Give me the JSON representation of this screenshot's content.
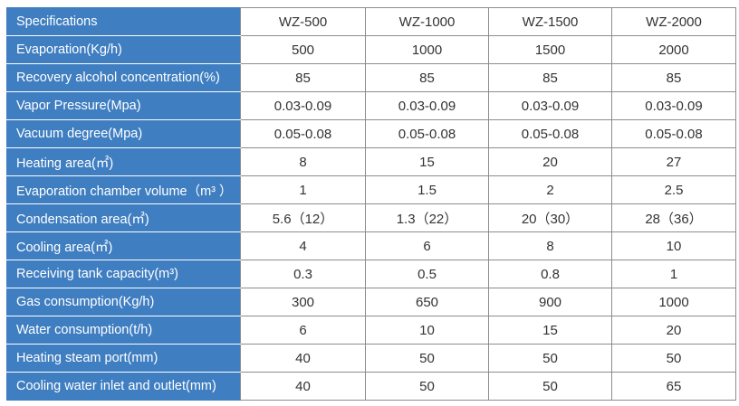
{
  "table": {
    "header_label": "Specifications",
    "models": [
      "WZ-500",
      "WZ-1000",
      "WZ-1500",
      "WZ-2000"
    ],
    "rows": [
      {
        "label": "Evaporation(Kg/h)",
        "values": [
          "500",
          "1000",
          "1500",
          "2000"
        ]
      },
      {
        "label": "Recovery alcohol concentration(%)",
        "values": [
          "85",
          "85",
          "85",
          "85"
        ]
      },
      {
        "label": "Vapor Pressure(Mpa)",
        "values": [
          "0.03-0.09",
          "0.03-0.09",
          "0.03-0.09",
          "0.03-0.09"
        ]
      },
      {
        "label": "Vacuum degree(Mpa)",
        "values": [
          "0.05-0.08",
          "0.05-0.08",
          "0.05-0.08",
          "0.05-0.08"
        ]
      },
      {
        "label": "Heating area(㎡)",
        "values": [
          "8",
          "15",
          "20",
          "27"
        ]
      },
      {
        "label": "Evaporation chamber volume（m³ ）",
        "values": [
          "1",
          "1.5",
          "2",
          "2.5"
        ]
      },
      {
        "label": "Condensation area(㎡)",
        "values": [
          "5.6（12）",
          "1.3（22）",
          "20（30）",
          "28（36）"
        ]
      },
      {
        "label": "Cooling area(㎡)",
        "values": [
          "4",
          "6",
          "8",
          "10"
        ]
      },
      {
        "label": "Receiving tank capacity(m³)",
        "values": [
          "0.3",
          "0.5",
          "0.8",
          "1"
        ]
      },
      {
        "label": "Gas consumption(Kg/h)",
        "values": [
          "300",
          "650",
          "900",
          "1000"
        ]
      },
      {
        "label": "Water consumption(t/h)",
        "values": [
          "6",
          "10",
          "15",
          "20"
        ]
      },
      {
        "label": "Heating steam port(mm)",
        "values": [
          "40",
          "50",
          "50",
          "50"
        ]
      },
      {
        "label": "Cooling water inlet and outlet(mm)",
        "values": [
          "40",
          "50",
          "50",
          "65"
        ]
      }
    ]
  },
  "colors": {
    "label_background": "#3f7ec1",
    "label_text": "#ffffff",
    "value_text": "#333333",
    "grid_line": "#8c8c8c"
  }
}
